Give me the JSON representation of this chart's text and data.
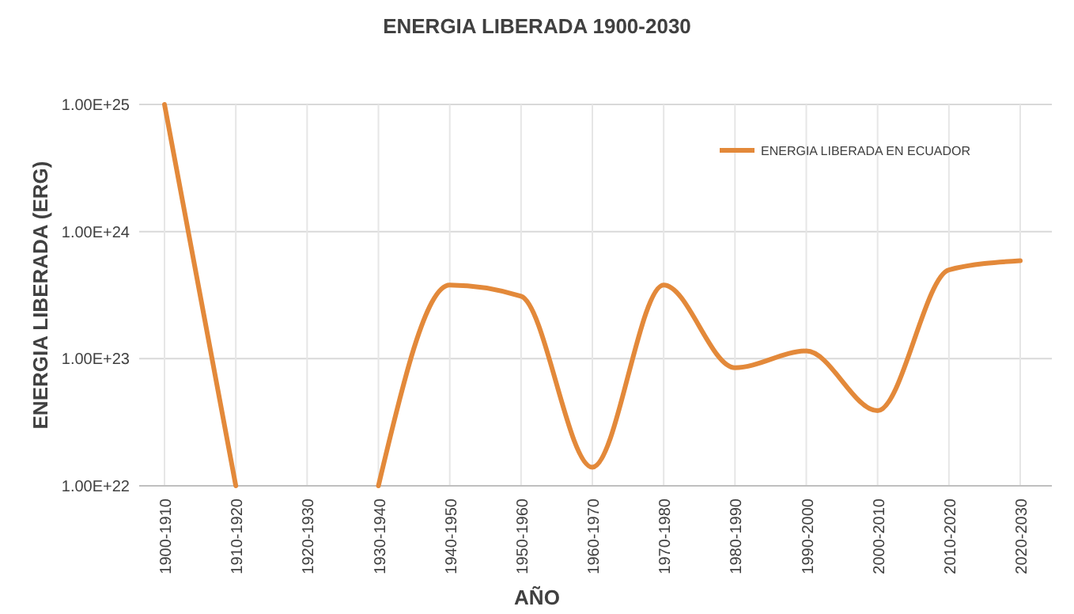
{
  "chart_data": {
    "type": "line",
    "title": "ENERGIA LIBERADA 1900-2030",
    "xlabel": "AÑO",
    "ylabel": "ENERGIA LIBERADA (ERG)",
    "categories": [
      "1900-1910",
      "1910-1920",
      "1920-1930",
      "1930-1940",
      "1940-1950",
      "1950-1960",
      "1960-1970",
      "1970-1980",
      "1980-1990",
      "1990-2000",
      "2000-2010",
      "2010-2020",
      "2020-2030"
    ],
    "series": [
      {
        "name": "ENERGIA LIBERADA EN ECUADOR",
        "color": "#e3893a",
        "values": [
          1e+25,
          1e+22,
          null,
          1e+22,
          3.8e+23,
          3.1e+23,
          1.4e+22,
          3.8e+23,
          8.5e+22,
          1.15e+23,
          3.9e+22,
          5e+23,
          5.9e+23
        ]
      }
    ],
    "log": true,
    "ylim": [
      1e+22,
      1e+25
    ],
    "yticks": [
      {
        "value": 1e+22,
        "label": "1.00E+22"
      },
      {
        "value": 1e+23,
        "label": "1.00E+23"
      },
      {
        "value": 1e+24,
        "label": "1.00E+24"
      },
      {
        "value": 1e+25,
        "label": "1.00E+25"
      }
    ],
    "grid": true,
    "legend": "top right",
    "marker": "none",
    "line_style": "solid"
  }
}
